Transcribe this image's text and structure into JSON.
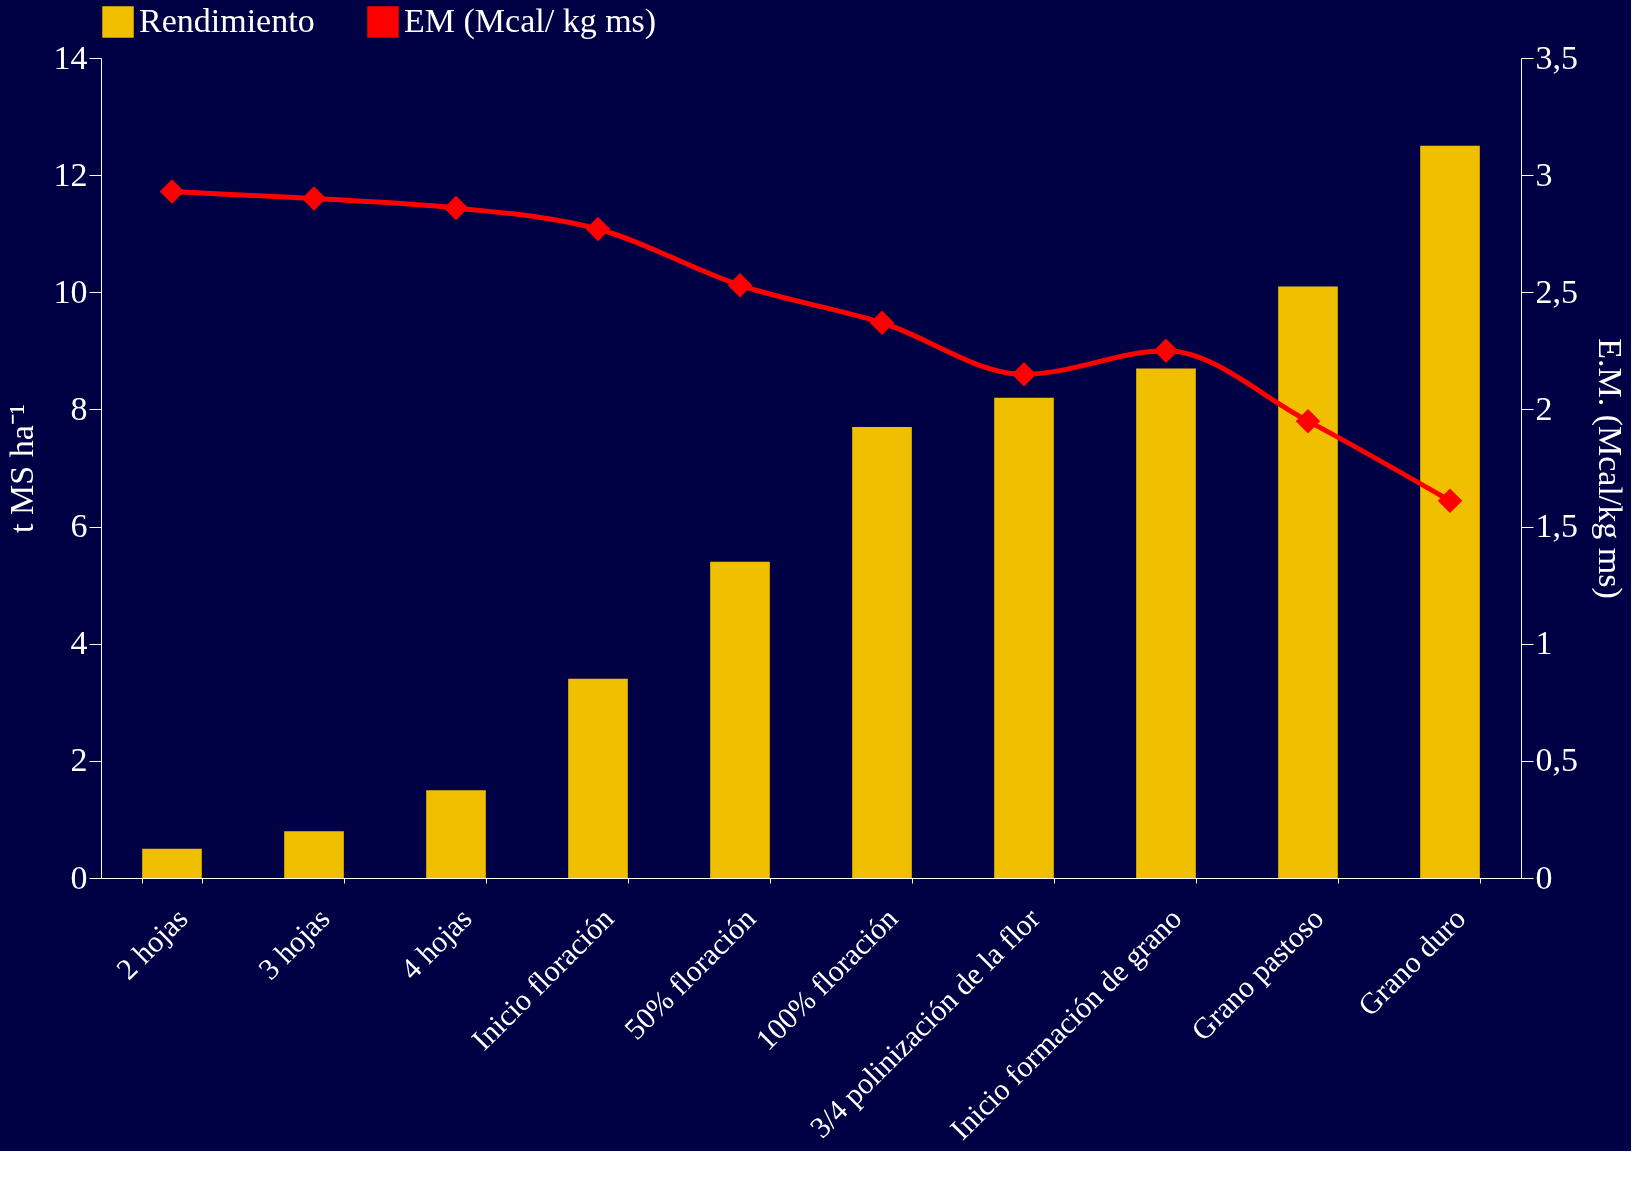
{
  "chart_data": {
    "type": "bar",
    "categories": [
      "2 hojas",
      "3 hojas",
      "4 hojas",
      "Inicio floración",
      "50% floración",
      "100% floración",
      "3/4 polinización de la flor",
      "Inicio formación de grano",
      "Grano pastoso",
      "Grano duro"
    ],
    "series": [
      {
        "name": "Rendimiento",
        "color": "#f0c000",
        "values": [
          0.5,
          0.8,
          1.5,
          3.4,
          5.4,
          7.7,
          8.2,
          8.7,
          10.1,
          12.5
        ]
      },
      {
        "name": "EM (Mcal/ kg ms)",
        "type": "line",
        "axis": "y2",
        "color": "#ff0000",
        "values": [
          2.93,
          2.9,
          2.86,
          2.77,
          2.53,
          2.37,
          2.15,
          2.25,
          1.95,
          1.61
        ]
      }
    ],
    "ylabel": "t MS ha⁻¹",
    "y2label": "E.M. (Mcal/kg ms)",
    "ylim": [
      0,
      14
    ],
    "yticks": [
      0,
      2,
      4,
      6,
      8,
      10,
      12,
      14
    ],
    "y2lim": [
      0,
      3.5
    ],
    "y2ticks": [
      0,
      {
        "value": 0.5,
        "label": "0,5"
      },
      1,
      {
        "value": 1.5,
        "label": "1,5"
      },
      2,
      {
        "value": 2.5,
        "label": "2,5"
      },
      3,
      {
        "value": 3.5,
        "label": "3,5"
      }
    ],
    "legend": "top",
    "marker": "diamond",
    "grid": false
  }
}
